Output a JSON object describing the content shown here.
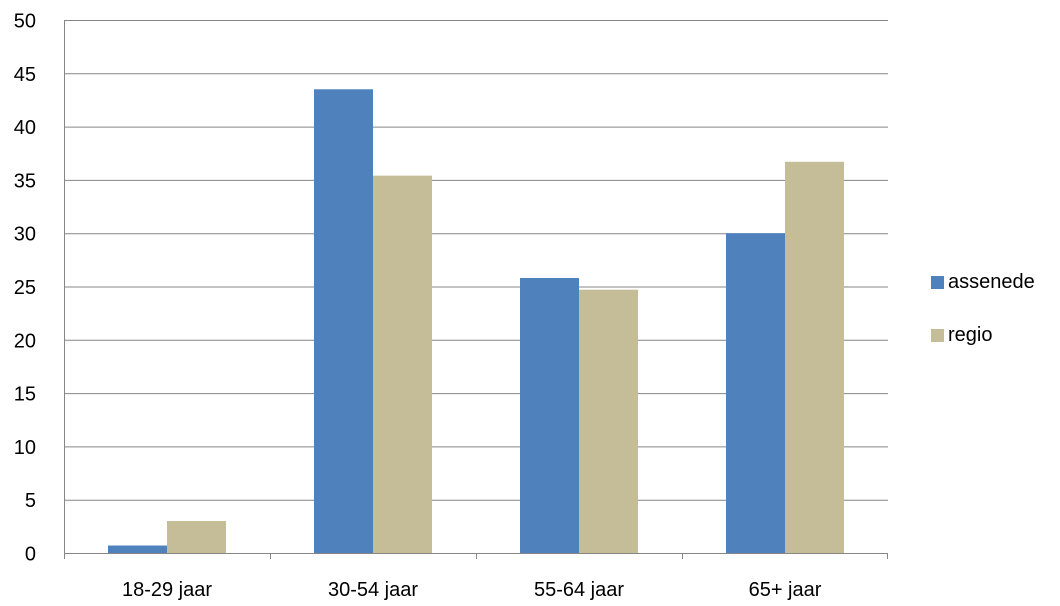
{
  "chart_data": {
    "type": "bar",
    "categories": [
      "18-29 jaar",
      "30-54 jaar",
      "55-64 jaar",
      "65+ jaar"
    ],
    "series": [
      {
        "name": "assenede",
        "values": [
          0.7,
          43.5,
          25.8,
          30.0
        ],
        "color": "#4F81BD"
      },
      {
        "name": "regio",
        "values": [
          3.0,
          35.4,
          24.7,
          36.7
        ],
        "color": "#C4BD97"
      }
    ],
    "title": "",
    "xlabel": "",
    "ylabel": "",
    "ylim": [
      0,
      50
    ],
    "yticks": [
      "0",
      "5",
      "10",
      "15",
      "20",
      "25",
      "30",
      "35",
      "40",
      "45",
      "50"
    ],
    "grid": true,
    "legend_position": "right"
  }
}
